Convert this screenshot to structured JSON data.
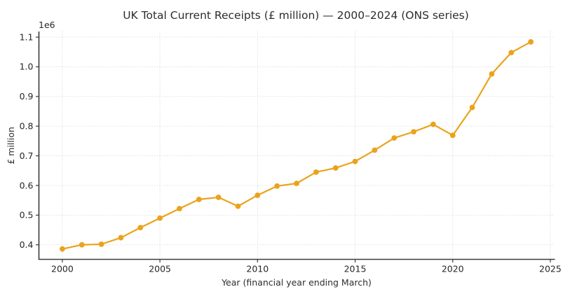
{
  "chart_data": {
    "type": "line",
    "title": "UK Total Current Receipts (£ million) — 2000–2024 (ONS series)",
    "xlabel": "Year (financial year ending March)",
    "ylabel": "£ million",
    "offset_text": "1e6",
    "x": [
      2000,
      2001,
      2002,
      2003,
      2004,
      2005,
      2006,
      2007,
      2008,
      2009,
      2010,
      2011,
      2012,
      2013,
      2014,
      2015,
      2016,
      2017,
      2018,
      2019,
      2020,
      2021,
      2022,
      2023,
      2024
    ],
    "values": [
      386000,
      400000,
      402000,
      424000,
      458000,
      490000,
      522000,
      553000,
      560000,
      530000,
      567000,
      598000,
      607000,
      645000,
      659000,
      681000,
      719000,
      760000,
      781000,
      806000,
      769000,
      863000,
      976000,
      1048000,
      1084000
    ],
    "xlim": [
      1998.8,
      2025.2
    ],
    "ylim": [
      351000,
      1119000
    ],
    "xticks": [
      2000,
      2005,
      2010,
      2015,
      2020,
      2025
    ],
    "xtick_labels": [
      "2000",
      "2005",
      "2010",
      "2015",
      "2020",
      "2025"
    ],
    "yticks": [
      400000,
      500000,
      600000,
      700000,
      800000,
      900000,
      1000000,
      1100000
    ],
    "ytick_labels": [
      "0.4",
      "0.5",
      "0.6",
      "0.7",
      "0.8",
      "0.9",
      "1.0",
      "1.1"
    ],
    "grid": true,
    "grid_style": "dotted",
    "legend": null,
    "marker": "circle",
    "colors": {
      "line": "#EAA31B",
      "marker": "#EAA31B",
      "grid": "#d6d6d6",
      "spine": "#3b3b3b",
      "text": "#262626"
    }
  }
}
